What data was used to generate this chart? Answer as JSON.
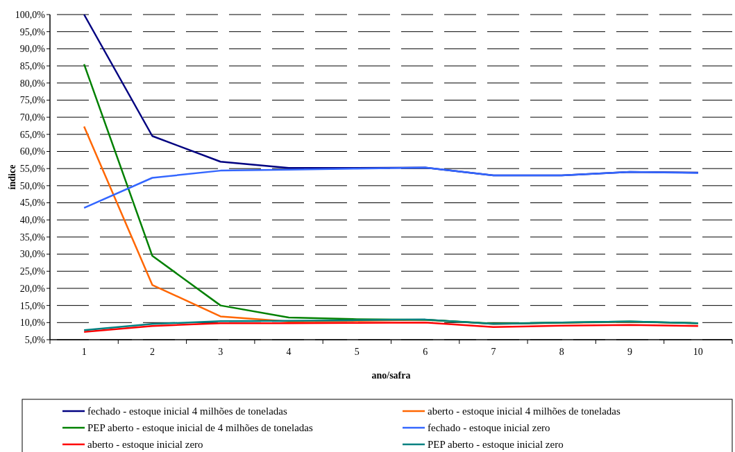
{
  "chart_data": {
    "type": "line",
    "xlabel": "ano/safra",
    "ylabel": "índice",
    "categories": [
      "1",
      "2",
      "3",
      "4",
      "5",
      "6",
      "7",
      "8",
      "9",
      "10"
    ],
    "series": [
      {
        "name": "fechado - estoque inicial 4 milhões de toneladas",
        "color": "#000080",
        "values": [
          100,
          64.5,
          57,
          55.2,
          55.2,
          55.3,
          53,
          53,
          54,
          53.8
        ]
      },
      {
        "name": "aberto - estoque inicial 4 milhões de toneladas",
        "color": "#ff6600",
        "values": [
          67.3,
          21,
          11.8,
          10.3,
          10.5,
          10.8,
          9.6,
          9.9,
          10.2,
          9.8
        ]
      },
      {
        "name": "PEP aberto - estoque inicial de 4 milhões de toneladas",
        "color": "#008000",
        "values": [
          85.5,
          29.5,
          15,
          11.5,
          11,
          10.8,
          9.7,
          10,
          10.3,
          9.8
        ]
      },
      {
        "name": "fechado - estoque inicial zero",
        "color": "#3366ff",
        "values": [
          43.5,
          52.3,
          54.4,
          54.7,
          55,
          55.3,
          53,
          53,
          54,
          53.7
        ]
      },
      {
        "name": "aberto - estoque inicial zero",
        "color": "#ff0000",
        "values": [
          7.3,
          9,
          9.8,
          9.8,
          9.9,
          10,
          8.7,
          9.1,
          9.3,
          9
        ]
      },
      {
        "name": "PEP aberto - estoque inicial zero",
        "color": "#008080",
        "values": [
          7.8,
          9.6,
          10.4,
          10.5,
          10.7,
          10.9,
          9.6,
          10,
          10.3,
          9.8
        ]
      }
    ],
    "ylim": [
      5,
      100
    ],
    "yticks": [
      {
        "value": 5,
        "label": "5,0%"
      },
      {
        "value": 10,
        "label": "10,0%"
      },
      {
        "value": 15,
        "label": "15,0%"
      },
      {
        "value": 20,
        "label": "20,0%"
      },
      {
        "value": 25,
        "label": "25,0%"
      },
      {
        "value": 30,
        "label": "30,0%"
      },
      {
        "value": 35,
        "label": "35,0%"
      },
      {
        "value": 40,
        "label": "40,0%"
      },
      {
        "value": 45,
        "label": "45,0%"
      },
      {
        "value": 50,
        "label": "50,0%"
      },
      {
        "value": 55,
        "label": "55,0%"
      },
      {
        "value": 60,
        "label": "60,0%"
      },
      {
        "value": 65,
        "label": "65,0%"
      },
      {
        "value": 70,
        "label": "70,0%"
      },
      {
        "value": 75,
        "label": "75,0%"
      },
      {
        "value": 80,
        "label": "80,0%"
      },
      {
        "value": 85,
        "label": "85,0%"
      },
      {
        "value": 90,
        "label": "90,0%"
      },
      {
        "value": 95,
        "label": "95,0%"
      },
      {
        "value": 100,
        "label": "100,0%"
      }
    ],
    "grid": "y",
    "legend": "bottom",
    "marker": "none",
    "line_style": "solid"
  }
}
